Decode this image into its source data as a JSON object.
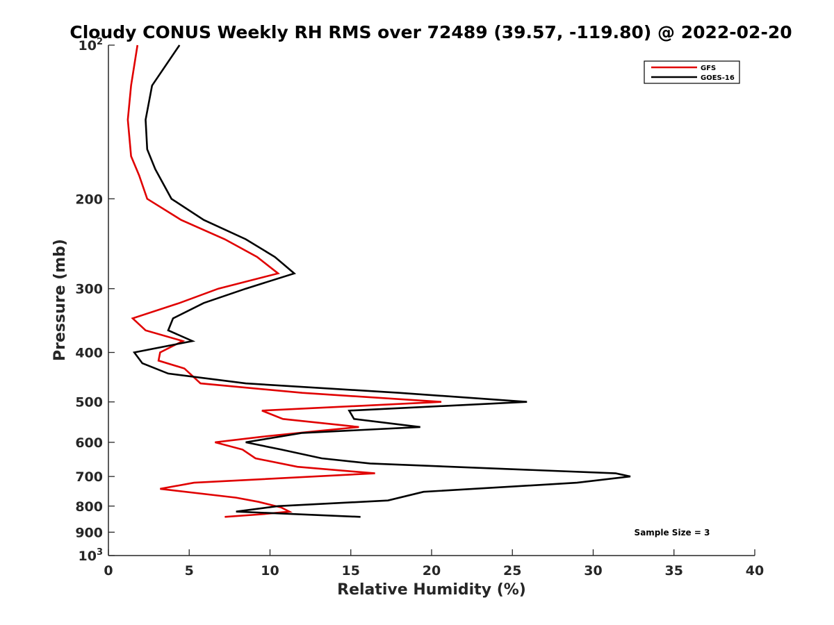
{
  "chart_data": {
    "type": "line",
    "title": "Cloudy CONUS Weekly RH RMS over 72489 (39.57, -119.80) @ 2022-02-20",
    "xlabel": "Relative Humidity (%)",
    "ylabel": "Pressure (mb)",
    "xlim": [
      0,
      40
    ],
    "ylim": [
      100,
      1000
    ],
    "y_scale": "log",
    "y_reversed": true,
    "x_ticks": [
      0,
      5,
      10,
      15,
      20,
      25,
      30,
      35,
      40
    ],
    "x_tick_labels": [
      "0",
      "5",
      "10",
      "15",
      "20",
      "25",
      "30",
      "35",
      "40"
    ],
    "y_ticks": [
      100,
      200,
      300,
      400,
      500,
      600,
      700,
      800,
      900,
      1000
    ],
    "y_tick_labels": [
      {
        "base": "10",
        "exp": "2"
      },
      {
        "base": "200",
        "exp": ""
      },
      {
        "base": "300",
        "exp": ""
      },
      {
        "base": "400",
        "exp": ""
      },
      {
        "base": "500",
        "exp": ""
      },
      {
        "base": "600",
        "exp": ""
      },
      {
        "base": "700",
        "exp": ""
      },
      {
        "base": "800",
        "exp": ""
      },
      {
        "base": "900",
        "exp": ""
      },
      {
        "base": "10",
        "exp": "3"
      }
    ],
    "grid": false,
    "legend_position": "top-right",
    "annotation": "Sample Size = 3",
    "series": [
      {
        "name": "GFS",
        "color": "#e00000",
        "points": [
          [
            1.8,
            100
          ],
          [
            1.4,
            120
          ],
          [
            1.2,
            140
          ],
          [
            1.4,
            165
          ],
          [
            1.9,
            180
          ],
          [
            2.4,
            200
          ],
          [
            4.5,
            220
          ],
          [
            7.2,
            240
          ],
          [
            9.2,
            260
          ],
          [
            10.5,
            280
          ],
          [
            6.8,
            300
          ],
          [
            4.4,
            320
          ],
          [
            1.5,
            343
          ],
          [
            2.3,
            362
          ],
          [
            4.6,
            380
          ],
          [
            3.2,
            400
          ],
          [
            3.1,
            415
          ],
          [
            4.7,
            430
          ],
          [
            5.7,
            460
          ],
          [
            12.0,
            480
          ],
          [
            20.6,
            500
          ],
          [
            9.5,
            520
          ],
          [
            10.8,
            540
          ],
          [
            15.5,
            560
          ],
          [
            13.0,
            570
          ],
          [
            9.5,
            585
          ],
          [
            6.6,
            600
          ],
          [
            8.3,
            620
          ],
          [
            9.1,
            645
          ],
          [
            11.7,
            670
          ],
          [
            16.5,
            690
          ],
          [
            5.3,
            720
          ],
          [
            3.2,
            740
          ],
          [
            7.9,
            770
          ],
          [
            9.3,
            785
          ],
          [
            10.7,
            805
          ],
          [
            11.2,
            820
          ],
          [
            9.5,
            830
          ],
          [
            7.2,
            840
          ]
        ]
      },
      {
        "name": "GOES-16",
        "color": "#000000",
        "points": [
          [
            4.4,
            100
          ],
          [
            2.7,
            120
          ],
          [
            2.3,
            140
          ],
          [
            2.4,
            160
          ],
          [
            2.9,
            175
          ],
          [
            3.9,
            200
          ],
          [
            5.9,
            220
          ],
          [
            8.5,
            240
          ],
          [
            10.3,
            260
          ],
          [
            11.5,
            280
          ],
          [
            8.5,
            300
          ],
          [
            5.9,
            320
          ],
          [
            4.0,
            343
          ],
          [
            3.7,
            362
          ],
          [
            5.2,
            380
          ],
          [
            1.6,
            400
          ],
          [
            2.1,
            420
          ],
          [
            3.7,
            440
          ],
          [
            8.5,
            460
          ],
          [
            18.0,
            480
          ],
          [
            25.9,
            500
          ],
          [
            14.9,
            520
          ],
          [
            15.2,
            540
          ],
          [
            19.3,
            560
          ],
          [
            12.0,
            575
          ],
          [
            8.5,
            600
          ],
          [
            10.7,
            620
          ],
          [
            13.2,
            645
          ],
          [
            16.2,
            660
          ],
          [
            31.4,
            690
          ],
          [
            32.3,
            700
          ],
          [
            29.0,
            720
          ],
          [
            19.5,
            750
          ],
          [
            17.3,
            780
          ],
          [
            10.5,
            800
          ],
          [
            7.9,
            820
          ],
          [
            15.6,
            840
          ]
        ]
      }
    ]
  }
}
